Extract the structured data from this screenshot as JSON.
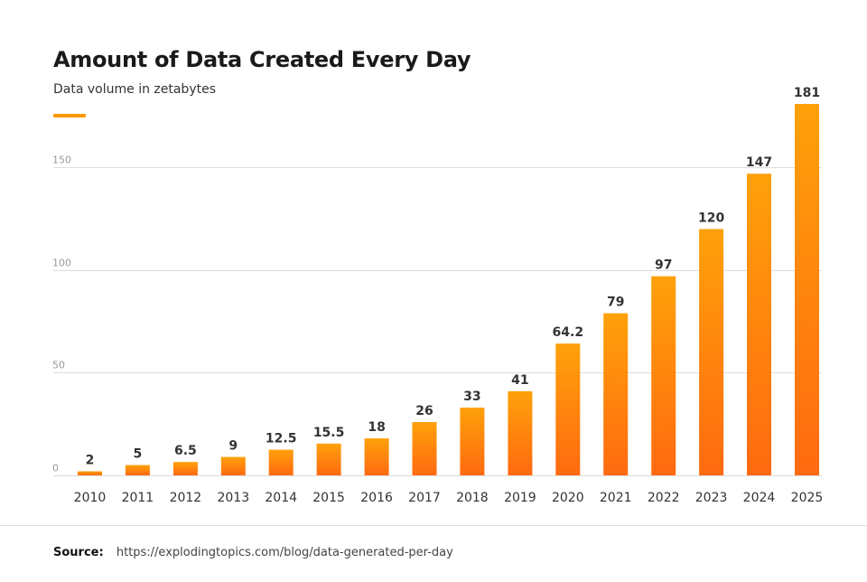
{
  "header": {
    "title": "Amount of Data Created Every Day",
    "subtitle": "Data volume in zetabytes"
  },
  "footer": {
    "source_label": "Source:",
    "source_url": "https://explodingtopics.com/blog/data-generated-per-day"
  },
  "colors": {
    "bar_top": "#ffa10a",
    "bar_bottom": "#ff6a10",
    "accent": "#ff9800",
    "gridline": "#dcdcdc",
    "tick_text": "#999999",
    "label_text": "#333333"
  },
  "chart_data": {
    "type": "bar",
    "title": "Amount of Data Created Every Day",
    "subtitle": "Data volume in zetabytes",
    "xlabel": "",
    "ylabel": "",
    "categories": [
      "2010",
      "2011",
      "2012",
      "2013",
      "2014",
      "2015",
      "2016",
      "2017",
      "2018",
      "2019",
      "2020",
      "2021",
      "2022",
      "2023",
      "2024",
      "2025"
    ],
    "values": [
      2,
      5,
      6.5,
      9,
      12.5,
      15.5,
      18,
      26,
      33,
      41,
      64.2,
      79,
      97,
      120,
      147,
      181
    ],
    "value_labels": [
      "2",
      "5",
      "6.5",
      "9",
      "12.5",
      "15.5",
      "18",
      "26",
      "33",
      "41",
      "64.2",
      "79",
      "97",
      "120",
      "147",
      "181"
    ],
    "yticks": [
      0,
      50,
      100,
      150
    ],
    "ytick_labels": [
      "0",
      "50",
      "100",
      "150"
    ],
    "ylim": [
      0,
      181
    ],
    "grid": true,
    "legend": "none"
  }
}
